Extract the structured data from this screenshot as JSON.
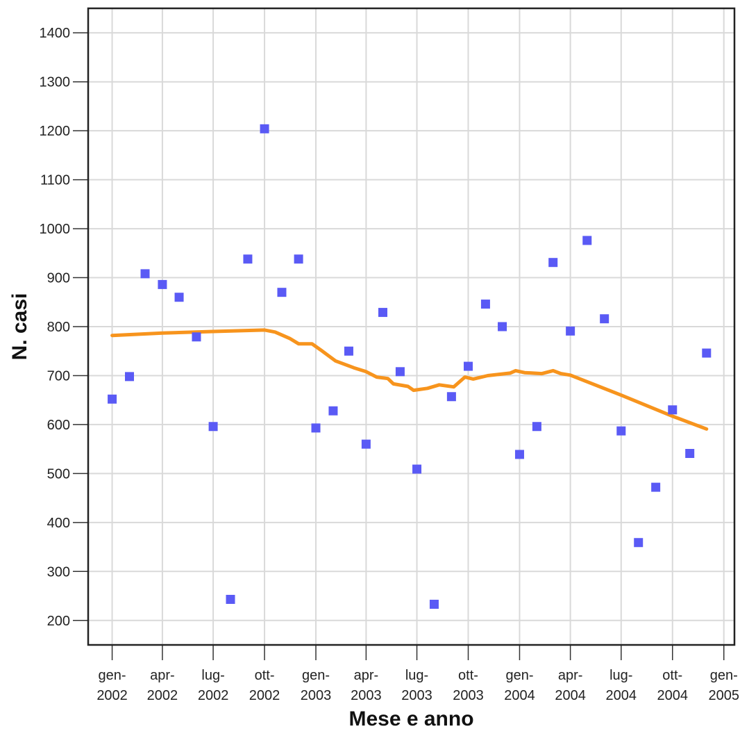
{
  "chart_data": {
    "type": "scatter",
    "xlabel": "Mese e anno",
    "ylabel": "N. casi",
    "ylim": [
      150,
      1450
    ],
    "xlim": [
      "2001-11-19",
      "2005-01-20"
    ],
    "y_ticks": [
      200,
      300,
      400,
      500,
      600,
      700,
      800,
      900,
      1000,
      1100,
      1200,
      1300,
      1400
    ],
    "x_ticks": [
      {
        "date": "2002-01-01",
        "line1": "gen-",
        "line2": "2002"
      },
      {
        "date": "2002-04-01",
        "line1": "apr-",
        "line2": "2002"
      },
      {
        "date": "2002-07-01",
        "line1": "lug-",
        "line2": "2002"
      },
      {
        "date": "2002-10-01",
        "line1": "ott-",
        "line2": "2002"
      },
      {
        "date": "2003-01-01",
        "line1": "gen-",
        "line2": "2003"
      },
      {
        "date": "2003-04-01",
        "line1": "apr-",
        "line2": "2003"
      },
      {
        "date": "2003-07-01",
        "line1": "lug-",
        "line2": "2003"
      },
      {
        "date": "2003-10-01",
        "line1": "ott-",
        "line2": "2003"
      },
      {
        "date": "2004-01-01",
        "line1": "gen-",
        "line2": "2004"
      },
      {
        "date": "2004-04-01",
        "line1": "apr-",
        "line2": "2004"
      },
      {
        "date": "2004-07-01",
        "line1": "lug-",
        "line2": "2004"
      },
      {
        "date": "2004-10-01",
        "line1": "ott-",
        "line2": "2004"
      },
      {
        "date": "2005-01-01",
        "line1": "gen-",
        "line2": "2005"
      }
    ],
    "grid": true,
    "legend": "none",
    "series": [
      {
        "kind": "points",
        "marker": "square",
        "color": "#5a5af5",
        "points": [
          {
            "x": "2002-01-01",
            "y": 652
          },
          {
            "x": "2002-02-01",
            "y": 698
          },
          {
            "x": "2002-03-01",
            "y": 908
          },
          {
            "x": "2002-04-01",
            "y": 886
          },
          {
            "x": "2002-05-01",
            "y": 860
          },
          {
            "x": "2002-06-01",
            "y": 779
          },
          {
            "x": "2002-07-01",
            "y": 596
          },
          {
            "x": "2002-08-01",
            "y": 243
          },
          {
            "x": "2002-09-01",
            "y": 938
          },
          {
            "x": "2002-10-01",
            "y": 1204
          },
          {
            "x": "2002-11-01",
            "y": 870
          },
          {
            "x": "2002-12-01",
            "y": 938
          },
          {
            "x": "2003-01-01",
            "y": 593
          },
          {
            "x": "2003-02-01",
            "y": 628
          },
          {
            "x": "2003-03-01",
            "y": 750
          },
          {
            "x": "2003-04-01",
            "y": 560
          },
          {
            "x": "2003-05-01",
            "y": 829
          },
          {
            "x": "2003-06-01",
            "y": 708
          },
          {
            "x": "2003-07-01",
            "y": 509
          },
          {
            "x": "2003-08-01",
            "y": 233
          },
          {
            "x": "2003-09-01",
            "y": 657
          },
          {
            "x": "2003-10-01",
            "y": 719
          },
          {
            "x": "2003-11-01",
            "y": 846
          },
          {
            "x": "2003-12-01",
            "y": 800
          },
          {
            "x": "2004-01-01",
            "y": 539
          },
          {
            "x": "2004-02-01",
            "y": 596
          },
          {
            "x": "2004-03-01",
            "y": 931
          },
          {
            "x": "2004-04-01",
            "y": 791
          },
          {
            "x": "2004-05-01",
            "y": 976
          },
          {
            "x": "2004-06-01",
            "y": 816
          },
          {
            "x": "2004-07-01",
            "y": 587
          },
          {
            "x": "2004-08-01",
            "y": 359
          },
          {
            "x": "2004-09-01",
            "y": 472
          },
          {
            "x": "2004-10-01",
            "y": 630
          },
          {
            "x": "2004-11-01",
            "y": 541
          },
          {
            "x": "2004-12-01",
            "y": 746
          }
        ]
      },
      {
        "kind": "fit-line",
        "color": "#f7941d",
        "points": [
          {
            "x": "2002-01-01",
            "y": 782
          },
          {
            "x": "2002-04-01",
            "y": 787
          },
          {
            "x": "2002-07-01",
            "y": 790
          },
          {
            "x": "2002-10-01",
            "y": 793
          },
          {
            "x": "2002-10-20",
            "y": 789
          },
          {
            "x": "2002-11-15",
            "y": 776
          },
          {
            "x": "2002-12-01",
            "y": 765
          },
          {
            "x": "2002-12-25",
            "y": 765
          },
          {
            "x": "2003-01-10",
            "y": 752
          },
          {
            "x": "2003-02-05",
            "y": 730
          },
          {
            "x": "2003-03-10",
            "y": 716
          },
          {
            "x": "2003-04-01",
            "y": 708
          },
          {
            "x": "2003-04-20",
            "y": 697
          },
          {
            "x": "2003-05-10",
            "y": 694
          },
          {
            "x": "2003-05-20",
            "y": 683
          },
          {
            "x": "2003-06-15",
            "y": 678
          },
          {
            "x": "2003-06-25",
            "y": 670
          },
          {
            "x": "2003-07-20",
            "y": 674
          },
          {
            "x": "2003-08-10",
            "y": 681
          },
          {
            "x": "2003-09-05",
            "y": 677
          },
          {
            "x": "2003-09-25",
            "y": 697
          },
          {
            "x": "2003-10-10",
            "y": 693
          },
          {
            "x": "2003-11-05",
            "y": 700
          },
          {
            "x": "2003-12-15",
            "y": 705
          },
          {
            "x": "2003-12-25",
            "y": 710
          },
          {
            "x": "2004-01-10",
            "y": 706
          },
          {
            "x": "2004-02-10",
            "y": 704
          },
          {
            "x": "2004-03-01",
            "y": 710
          },
          {
            "x": "2004-03-15",
            "y": 704
          },
          {
            "x": "2004-04-01",
            "y": 701
          },
          {
            "x": "2004-07-01",
            "y": 660
          },
          {
            "x": "2004-10-01",
            "y": 617
          },
          {
            "x": "2004-12-01",
            "y": 591
          }
        ]
      }
    ]
  }
}
